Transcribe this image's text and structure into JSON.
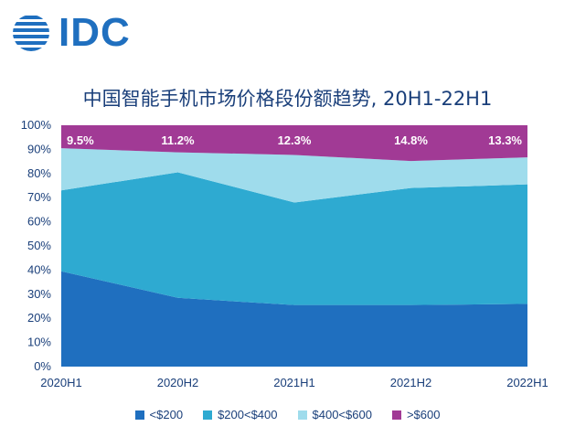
{
  "logo": {
    "text": "IDC"
  },
  "chart_data": {
    "type": "area",
    "stacked": true,
    "title": "中国智能手机市场价格段份额趋势, 20H1-22H1",
    "categories": [
      "2020H1",
      "2020H2",
      "2021H1",
      "2021H2",
      "2022H1"
    ],
    "yticks": [
      "0%",
      "10%",
      "20%",
      "30%",
      "40%",
      "50%",
      "60%",
      "70%",
      "80%",
      "90%",
      "100%"
    ],
    "ylim": [
      0,
      100
    ],
    "series": [
      {
        "name": "<$200",
        "color": "#1f6fbf",
        "values": [
          39.5,
          28.5,
          25.5,
          25.5,
          26.0
        ]
      },
      {
        "name": "$200<$400",
        "color": "#2eaad1",
        "values": [
          33.5,
          52.0,
          42.5,
          48.5,
          49.5
        ]
      },
      {
        "name": "$400<$600",
        "color": "#9fdcec",
        "values": [
          17.5,
          8.3,
          19.7,
          11.2,
          11.2
        ]
      },
      {
        "name": ">$600",
        "color": "#a13a95",
        "values": [
          9.5,
          11.2,
          12.3,
          14.8,
          13.3
        ]
      }
    ],
    "annotations": [
      "9.5%",
      "11.2%",
      "12.3%",
      "14.8%",
      "13.3%"
    ],
    "grid": false,
    "legend_position": "bottom"
  }
}
